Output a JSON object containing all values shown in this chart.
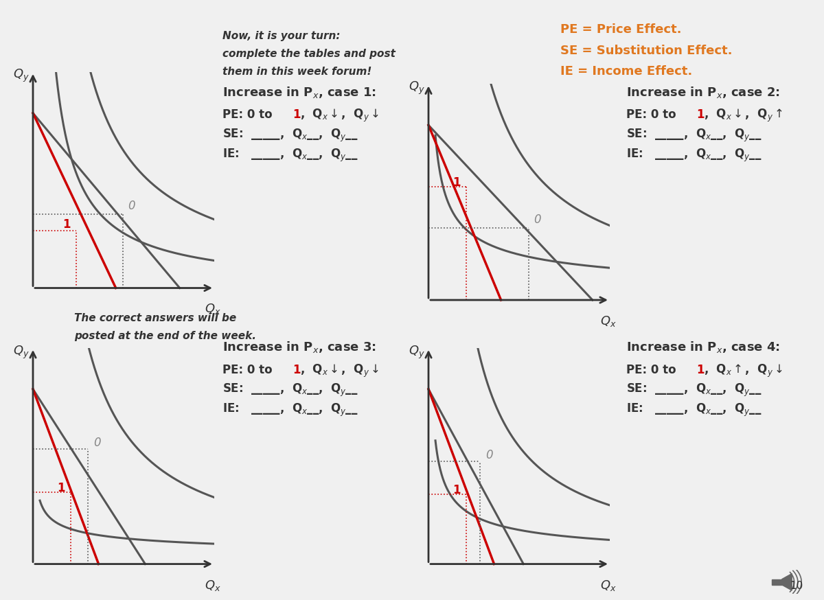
{
  "bg_color": "#f0f0f0",
  "orange_color": "#E07820",
  "red_color": "#CC0000",
  "dark_gray": "#333333",
  "med_gray": "#555555",
  "light_gray": "#888888",
  "top_left_text1": "Now, it is your turn:",
  "top_left_text2": "complete the tables and post",
  "top_left_text3": "them in this week forum!",
  "bottom_left_text1": "The correct answers will be",
  "bottom_left_text2": "posted at the end of the week.",
  "legend_line1": "PE = Price Effect.",
  "legend_line2": "SE = Substitution Effect.",
  "legend_line3": "IE = Income Effect."
}
